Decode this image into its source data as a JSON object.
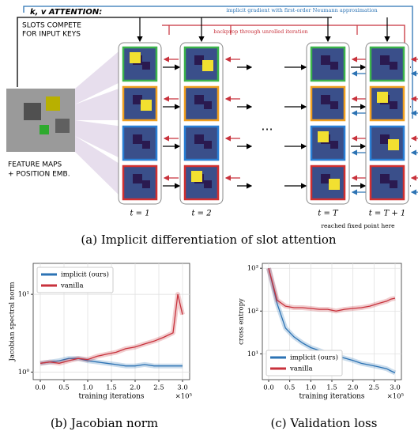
{
  "diagram": {
    "attention_label": "k, v ATTENTION:",
    "implicit_label": "implicit gradient with first-order Neumann approximation",
    "compete_lines": [
      "SLOTS COMPETE",
      "FOR INPUT KEYS"
    ],
    "backprop_label": "backprop through unrolled iteration",
    "feature_lines": [
      "FEATURE MAPS",
      "+ POSITION EMB."
    ],
    "ellipsis": "...",
    "time_labels": [
      "t = 1",
      "t = 2",
      "t = T",
      "t = T + 1"
    ],
    "fixed_point_label": "reached fixed point here",
    "caption": "(a) Implicit differentiation of slot attention"
  },
  "chart_data": [
    {
      "type": "line",
      "caption": "(b) Jacobian norm",
      "ylabel": "Jacobian spectral norm",
      "xlabel": "training iterations",
      "x_multiplier": "×10⁵",
      "log_y": true,
      "grid": true,
      "legend": "upper left",
      "x": [
        0,
        0.2,
        0.4,
        0.6,
        0.8,
        1.0,
        1.2,
        1.4,
        1.6,
        1.8,
        2.0,
        2.2,
        2.4,
        2.6,
        2.8,
        2.9,
        3.0
      ],
      "series": [
        {
          "name": "implicit (ours)",
          "color": "#2c73b4",
          "values": [
            1.3,
            1.35,
            1.4,
            1.5,
            1.5,
            1.4,
            1.35,
            1.3,
            1.25,
            1.2,
            1.2,
            1.25,
            1.2,
            1.2,
            1.2,
            1.2,
            1.2
          ]
        },
        {
          "name": "vanilla",
          "color": "#c8323c",
          "values": [
            1.3,
            1.35,
            1.3,
            1.4,
            1.5,
            1.45,
            1.6,
            1.7,
            1.8,
            2.0,
            2.1,
            2.3,
            2.5,
            2.8,
            3.2,
            10,
            5.5
          ]
        }
      ],
      "xlim": [
        -0.15,
        3.15
      ],
      "ylim": [
        0.8,
        25
      ],
      "xticks": [
        {
          "value": 0,
          "label": "0.0"
        },
        0.5,
        {
          "value": 1,
          "label": "1.0"
        },
        1.5,
        {
          "value": 2,
          "label": "2.0"
        },
        2.5,
        {
          "value": 3,
          "label": "3.0"
        }
      ],
      "yticks": [
        {
          "value": 1,
          "label": "10⁰"
        },
        {
          "value": 10,
          "label": "10¹"
        }
      ]
    },
    {
      "type": "line",
      "caption": "(c) Validation loss",
      "ylabel": "cross entropy",
      "xlabel": "training iterations",
      "x_multiplier": "×10⁵",
      "log_y": true,
      "grid": true,
      "legend": "lower left",
      "x": [
        0,
        0.2,
        0.4,
        0.6,
        0.8,
        1.0,
        1.2,
        1.4,
        1.6,
        1.8,
        2.0,
        2.2,
        2.4,
        2.6,
        2.8,
        2.9,
        3.0
      ],
      "series": [
        {
          "name": "implicit (ours)",
          "color": "#2c73b4",
          "values": [
            1000,
            150,
            40,
            25,
            18,
            14,
            12,
            10,
            9,
            8,
            7,
            6,
            5.5,
            5,
            4.5,
            4,
            3.6
          ]
        },
        {
          "name": "vanilla",
          "color": "#c8323c",
          "values": [
            1000,
            180,
            130,
            120,
            120,
            115,
            110,
            110,
            100,
            110,
            115,
            120,
            130,
            150,
            170,
            190,
            200
          ]
        }
      ],
      "xlim": [
        -0.15,
        3.15
      ],
      "ylim": [
        2.5,
        1300
      ],
      "xticks": [
        {
          "value": 0,
          "label": "0.0"
        },
        0.5,
        {
          "value": 1,
          "label": "1.0"
        },
        1.5,
        {
          "value": 2,
          "label": "2.0"
        },
        2.5,
        {
          "value": 3,
          "label": "3.0"
        }
      ],
      "yticks": [
        {
          "value": 10,
          "label": "10¹"
        },
        {
          "value": 100,
          "label": "10²"
        },
        {
          "value": 1000,
          "label": "10³"
        }
      ]
    }
  ]
}
